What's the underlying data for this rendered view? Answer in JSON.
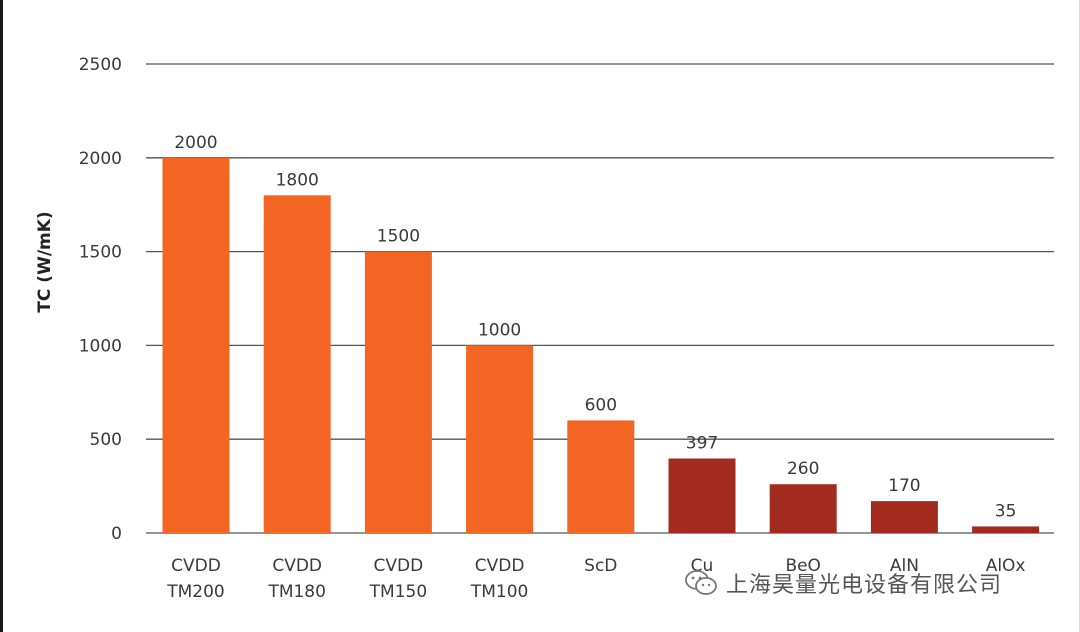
{
  "chart_data": {
    "type": "bar",
    "ylabel": "TC (W/mK)",
    "ylim": [
      0,
      2500
    ],
    "yticks": [
      0,
      500,
      1000,
      1500,
      2000,
      2500
    ],
    "grid": true,
    "categories": [
      [
        "CVDD",
        "TM200"
      ],
      [
        "CVDD",
        "TM180"
      ],
      [
        "CVDD",
        "TM150"
      ],
      [
        "CVDD",
        "TM100"
      ],
      [
        "ScD"
      ],
      [
        "Cu"
      ],
      [
        "BeO"
      ],
      [
        "AlN"
      ],
      [
        "AlOx"
      ]
    ],
    "values": [
      2000,
      1800,
      1500,
      1000,
      600,
      397,
      260,
      170,
      35
    ],
    "data_labels": [
      "2000",
      "1800",
      "1500",
      "1000",
      "600",
      "397",
      "260",
      "170",
      "35"
    ],
    "bar_colors": [
      "#f26522",
      "#f26522",
      "#f26522",
      "#f26522",
      "#f26522",
      "#a32a1e",
      "#a32a1e",
      "#a32a1e",
      "#a32a1e"
    ],
    "grid_color": "#555555"
  },
  "watermark": {
    "icon": "wechat-icon",
    "text": "上海昊量光电设备有限公司"
  }
}
